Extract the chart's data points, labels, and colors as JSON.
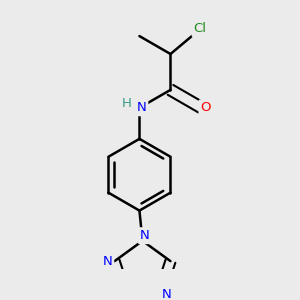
{
  "background_color": "#ebebeb",
  "bond_color": "#000000",
  "atom_colors": {
    "Cl": "#228B22",
    "O": "#FF0000",
    "N": "#0000FF",
    "H": "#3a9a8a",
    "C": "#000000"
  },
  "figsize": [
    3.0,
    3.0
  ],
  "dpi": 100
}
